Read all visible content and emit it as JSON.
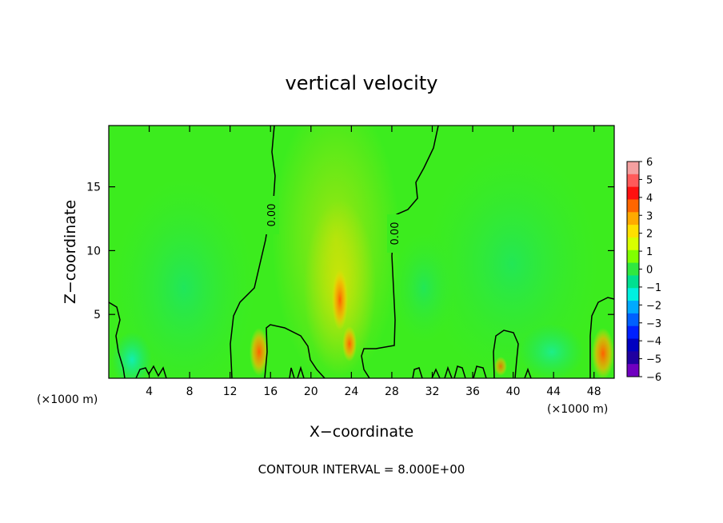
{
  "chart_data": {
    "type": "heatmap",
    "title": "vertical velocity",
    "xlabel": "X−coordinate",
    "ylabel": "Z−coordinate",
    "x_unit_left": "(×1000 m)",
    "x_unit_right": "(×1000 m)",
    "footer": "CONTOUR INTERVAL = 8.000E+00",
    "xlim": [
      0,
      50
    ],
    "ylim": [
      0,
      19.8
    ],
    "x_ticks": [
      4,
      8,
      12,
      16,
      20,
      24,
      28,
      32,
      36,
      40,
      44,
      48
    ],
    "y_ticks": [
      5,
      10,
      15
    ],
    "contour_labels": [
      "0.00",
      "0.00"
    ],
    "colorbar": {
      "ticks": [
        "6",
        "5",
        "4",
        "3",
        "2",
        "1",
        "0",
        "−1",
        "−2",
        "−3",
        "−4",
        "−5",
        "−6"
      ],
      "colors": [
        "#f4a0a0",
        "#ff5a5a",
        "#ff1010",
        "#ff6600",
        "#ffaa00",
        "#ffe000",
        "#d8ff00",
        "#80ff00",
        "#30e840",
        "#00e090",
        "#00f0e0",
        "#00aaff",
        "#0060ff",
        "#0020ff",
        "#0000c0",
        "#2000a0",
        "#7000c0"
      ]
    },
    "features": [
      {
        "x": 15,
        "z": 2,
        "w": 4,
        "label": "updraft"
      },
      {
        "x": 23,
        "z": 3,
        "w": 5,
        "label": "updraft"
      },
      {
        "x": 22.5,
        "z": 6,
        "w": 4,
        "label": "updraft"
      },
      {
        "x": 39,
        "z": 1,
        "w": 2,
        "label": "updraft"
      },
      {
        "x": 49,
        "z": 2,
        "w": 4,
        "label": "updraft"
      }
    ]
  }
}
